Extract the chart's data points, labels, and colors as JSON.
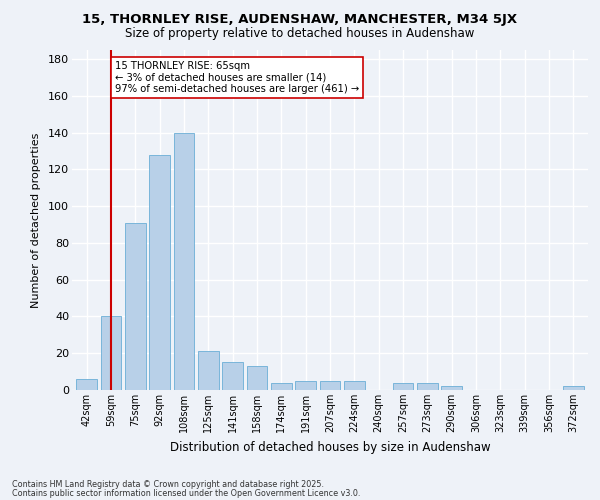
{
  "title1": "15, THORNLEY RISE, AUDENSHAW, MANCHESTER, M34 5JX",
  "title2": "Size of property relative to detached houses in Audenshaw",
  "xlabel": "Distribution of detached houses by size in Audenshaw",
  "ylabel": "Number of detached properties",
  "categories": [
    "42sqm",
    "59sqm",
    "75sqm",
    "92sqm",
    "108sqm",
    "125sqm",
    "141sqm",
    "158sqm",
    "174sqm",
    "191sqm",
    "207sqm",
    "224sqm",
    "240sqm",
    "257sqm",
    "273sqm",
    "290sqm",
    "306sqm",
    "323sqm",
    "339sqm",
    "356sqm",
    "372sqm"
  ],
  "values": [
    6,
    40,
    91,
    128,
    140,
    21,
    15,
    13,
    4,
    5,
    5,
    5,
    0,
    4,
    4,
    2,
    0,
    0,
    0,
    0,
    2
  ],
  "bar_color": "#b8d0e8",
  "bar_edge_color": "#6baed6",
  "vline_x": 1,
  "vline_color": "#cc0000",
  "annotation_text": "15 THORNLEY RISE: 65sqm\n← 3% of detached houses are smaller (14)\n97% of semi-detached houses are larger (461) →",
  "annotation_box_color": "#ffffff",
  "annotation_box_edge": "#cc0000",
  "ylim": [
    0,
    185
  ],
  "yticks": [
    0,
    20,
    40,
    60,
    80,
    100,
    120,
    140,
    160,
    180
  ],
  "background_color": "#eef2f8",
  "grid_color": "#ffffff",
  "footer1": "Contains HM Land Registry data © Crown copyright and database right 2025.",
  "footer2": "Contains public sector information licensed under the Open Government Licence v3.0."
}
